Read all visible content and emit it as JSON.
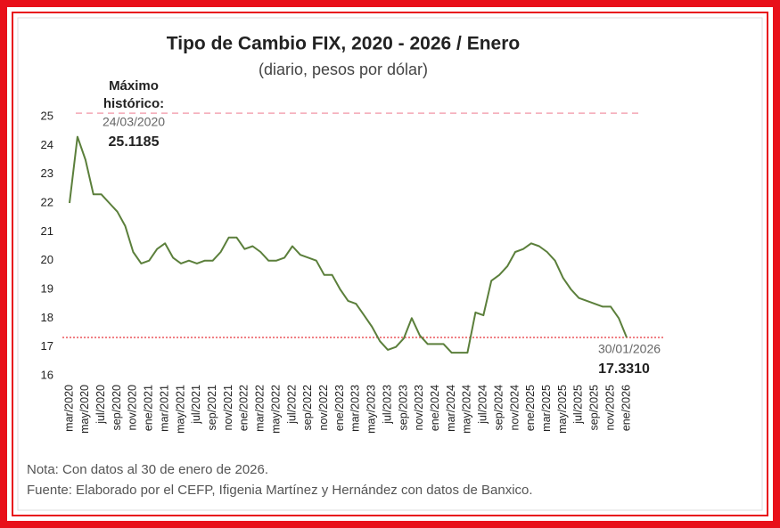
{
  "chart_data": {
    "type": "line",
    "title": "Tipo de Cambio FIX, 2020 - 2026 / Enero",
    "subtitle": "(diario, pesos por dólar)",
    "categories": [
      "mar/2020",
      null,
      "may/2020",
      null,
      "jul/2020",
      null,
      "sep/2020",
      null,
      "nov/2020",
      null,
      "ene/2021",
      null,
      "mar/2021",
      null,
      "may/2021",
      null,
      "jul/2021",
      null,
      "sep/2021",
      null,
      "nov/2021",
      null,
      "ene/2022",
      null,
      "mar/2022",
      null,
      "may/2022",
      null,
      "jul/2022",
      null,
      "sep/2022",
      null,
      "nov/2022",
      null,
      "ene/2023",
      null,
      "mar/2023",
      null,
      "may/2023",
      null,
      "jul/2023",
      null,
      "sep/2023",
      null,
      "nov/2023",
      null,
      "ene/2024",
      null,
      "mar/2024",
      null,
      "may/2024",
      null,
      "jul/2024",
      null,
      "sep/2024",
      null,
      "nov/2024",
      null,
      "ene/2025",
      null,
      "mar/2025",
      null,
      "may/2025",
      null,
      "jul/2025",
      null,
      "sep/2025",
      null,
      "nov/2025",
      null,
      "ene/2026"
    ],
    "values": [
      22.0,
      24.3,
      23.5,
      22.3,
      22.3,
      22.0,
      21.7,
      21.2,
      20.3,
      19.9,
      20.0,
      20.4,
      20.6,
      20.1,
      19.9,
      20.0,
      19.9,
      20.0,
      20.0,
      20.3,
      20.8,
      20.8,
      20.4,
      20.5,
      20.3,
      20.0,
      20.0,
      20.1,
      20.5,
      20.2,
      20.1,
      20.0,
      19.5,
      19.5,
      19.0,
      18.6,
      18.5,
      18.1,
      17.7,
      17.2,
      16.9,
      17.0,
      17.3,
      18.0,
      17.4,
      17.1,
      17.1,
      17.1,
      16.8,
      16.8,
      16.8,
      18.2,
      18.1,
      19.3,
      19.5,
      19.8,
      20.3,
      20.4,
      20.6,
      20.5,
      20.3,
      20.0,
      19.4,
      19.0,
      18.7,
      18.6,
      18.5,
      18.4,
      18.4,
      18.0,
      17.331
    ],
    "color": "#5b7f3b",
    "ylim": [
      16,
      25.3
    ],
    "yticks": [
      16,
      17,
      18,
      19,
      20,
      21,
      22,
      23,
      24,
      25
    ],
    "grid": false,
    "max_annotation": {
      "title": [
        "Máximo",
        "histórico:"
      ],
      "date": "24/03/2020",
      "value": 25.1185,
      "color": "#f4a6b5"
    },
    "last_annotation": {
      "date": "30/01/2026",
      "value": {
        "value": 17.331,
        "label": "17.3310"
      },
      "color": "#e8343a"
    },
    "note": "Nota: Con datos al 30 de enero de 2026.",
    "source": "Fuente: Elaborado por el CEFP, Ifigenia Martínez y Hernández con datos de Banxico."
  }
}
